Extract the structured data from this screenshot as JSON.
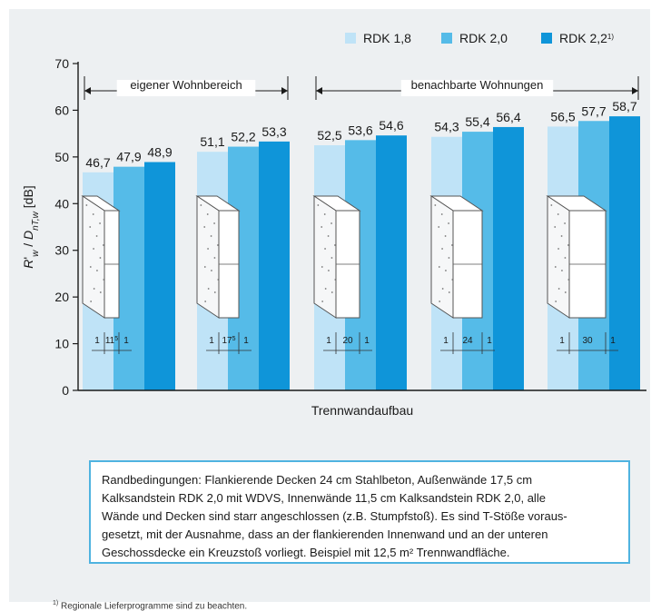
{
  "chart_data": {
    "type": "bar",
    "ylabel": "R'w / Dnt,w [dB]",
    "xlabel": "Trennwandaufbau",
    "ylim": [
      0,
      70
    ],
    "yticks": [
      0,
      10,
      20,
      30,
      40,
      50,
      60,
      70
    ],
    "grid": false,
    "legend_position": "top-right",
    "categories": [
      "1 | 11,5 | 1",
      "1 | 17,5 | 1",
      "1 | 20 | 1",
      "1 | 24 | 1",
      "1 | 30 | 1"
    ],
    "dimension_labels": [
      {
        "left": "1",
        "mid": "11",
        "sup": "5",
        "right": "1"
      },
      {
        "left": "1",
        "mid": "17",
        "sup": "5",
        "right": "1"
      },
      {
        "left": "1",
        "mid": "20",
        "sup": "",
        "right": "1"
      },
      {
        "left": "1",
        "mid": "24",
        "sup": "",
        "right": "1"
      },
      {
        "left": "1",
        "mid": "30",
        "sup": "",
        "right": "1"
      }
    ],
    "series": [
      {
        "name": "RDK 1,8",
        "color": "#bfe3f7",
        "values": [
          46.7,
          51.1,
          52.5,
          54.3,
          56.5
        ],
        "labels": [
          "46,7",
          "51,1",
          "52,5",
          "54,3",
          "56,5"
        ]
      },
      {
        "name": "RDK 2,0",
        "color": "#55bbe8",
        "values": [
          47.9,
          52.2,
          53.6,
          55.4,
          57.7
        ],
        "labels": [
          "47,9",
          "52,2",
          "53,6",
          "55,4",
          "57,7"
        ]
      },
      {
        "name": "RDK 2,2",
        "name_sup": "1)",
        "color": "#0f95d9",
        "values": [
          48.9,
          53.3,
          54.6,
          56.4,
          58.7
        ],
        "labels": [
          "48,9",
          "53,3",
          "54,6",
          "56,4",
          "58,7"
        ]
      }
    ],
    "annotations": [
      {
        "text": "eigener Wohnbereich",
        "from_group": 0,
        "to_group": 1
      },
      {
        "text": "benachbarte Wohnungen",
        "from_group": 2,
        "to_group": 4
      }
    ]
  },
  "note": {
    "lines": [
      "Randbedingungen: Flankierende Decken 24 cm Stahlbeton, Außenwände 17,5 cm",
      "Kalksandstein RDK 2,0 mit WDVS, Innenwände 11,5 cm Kalksandstein RDK 2,0, alle",
      "Wände und Decken sind starr angeschlossen (z.B. Stumpfstoß). Es sind T-Stöße voraus-",
      "gesetzt, mit der Ausnahme, dass an der flankierenden Innenwand und an der unteren",
      "Geschossdecke ein Kreuzstoß vorliegt. Beispiel mit 12,5 m² Trennwandfläche."
    ]
  },
  "footnote": {
    "sup": "1)",
    "text": " Regionale Lieferprogramme sind zu beachten."
  }
}
